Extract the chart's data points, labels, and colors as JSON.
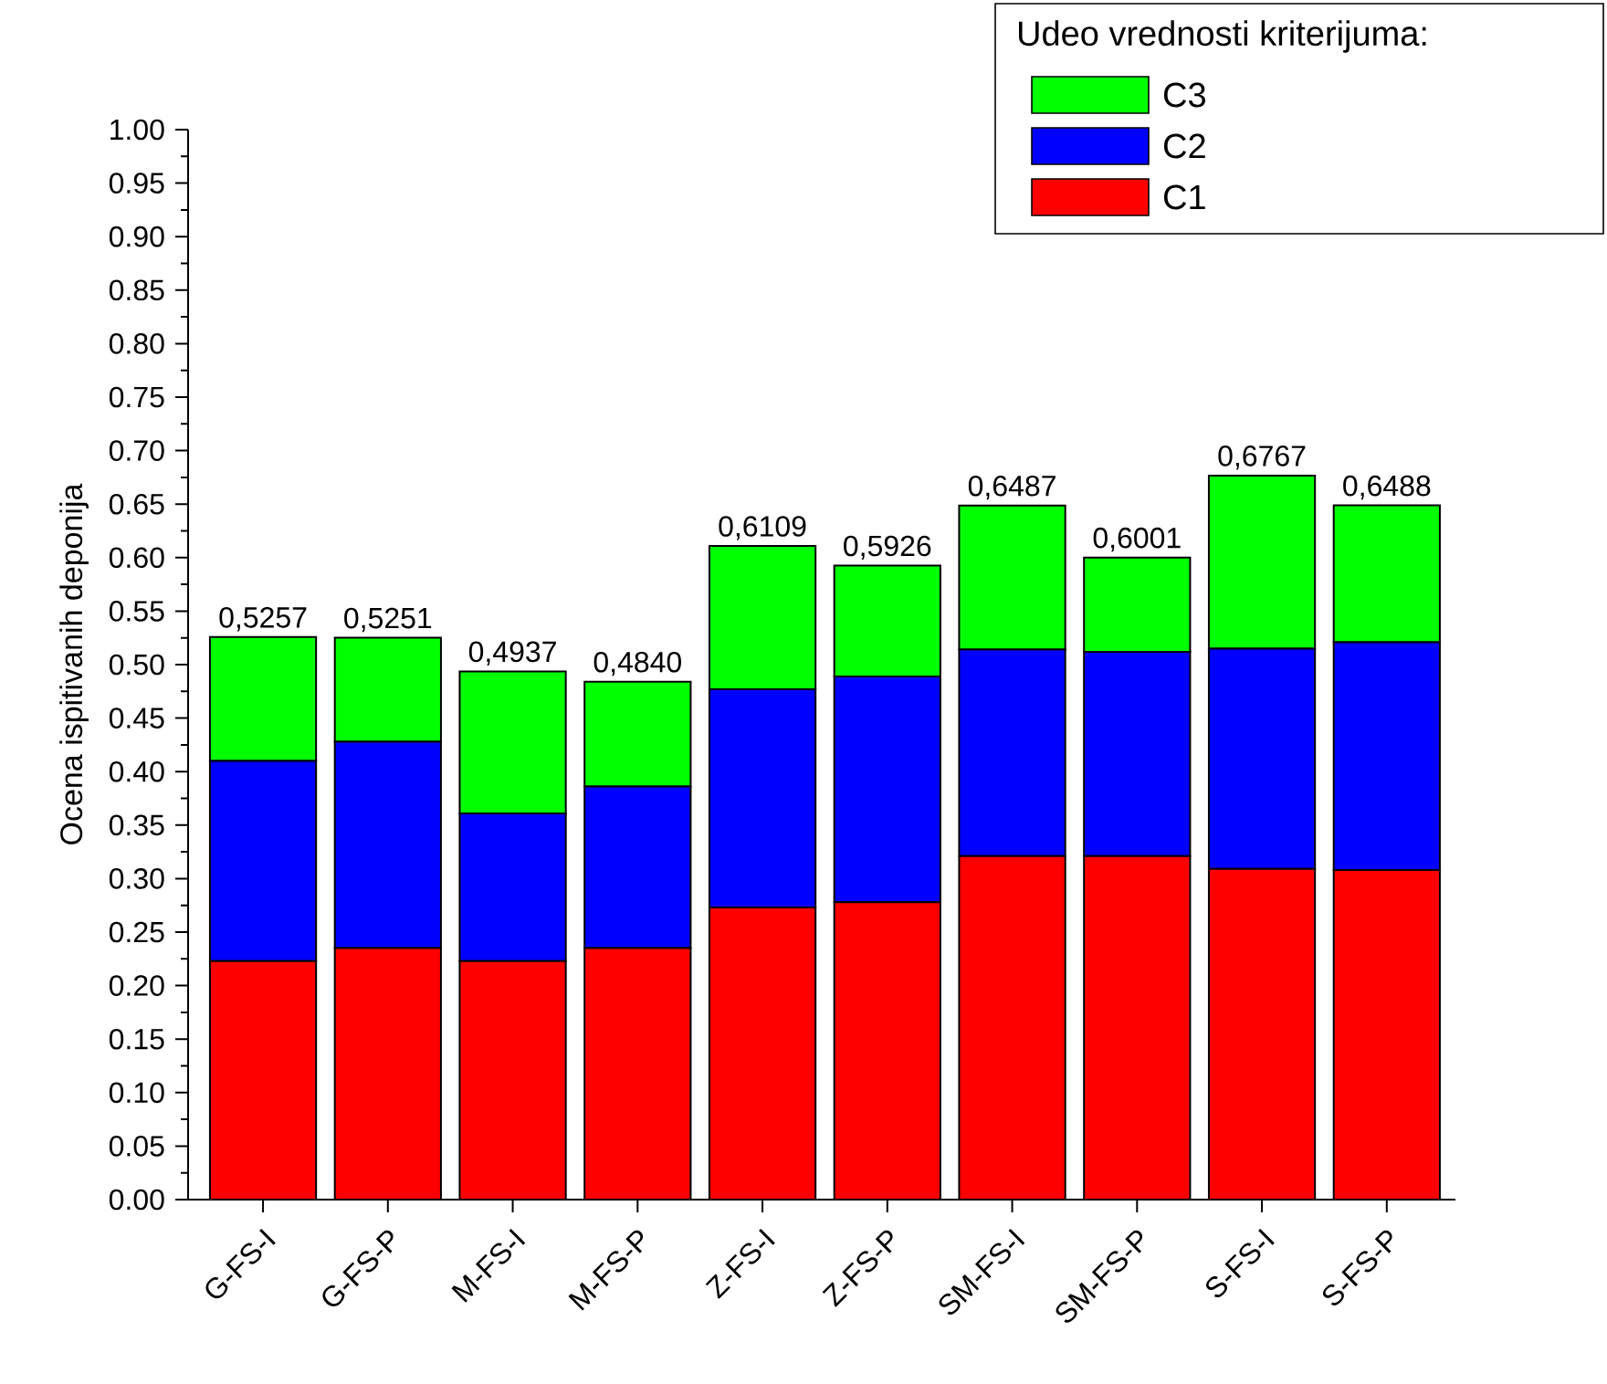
{
  "chart_data": {
    "type": "bar",
    "stacked": true,
    "ylabel": "Ocena ispitivanih deponija",
    "legend_title": "Udeo vrednosti kriterijuma:",
    "legend": "top right",
    "categories": [
      "G-FS-I",
      "G-FS-P",
      "M-FS-I",
      "M-FS-P",
      "Z-FS-I",
      "Z-FS-P",
      "SM-FS-I",
      "SM-FS-P",
      "S-FS-I",
      "S-FS-P"
    ],
    "series": [
      {
        "name": "C1",
        "color": "#ff0000",
        "values": [
          0.223,
          0.235,
          0.223,
          0.235,
          0.273,
          0.278,
          0.321,
          0.321,
          0.309,
          0.308
        ]
      },
      {
        "name": "C2",
        "color": "#0000ff",
        "values": [
          0.187,
          0.193,
          0.138,
          0.151,
          0.204,
          0.211,
          0.193,
          0.191,
          0.206,
          0.213
        ]
      },
      {
        "name": "C3",
        "color": "#00ff00",
        "values": [
          0.1157,
          0.0971,
          0.1327,
          0.098,
          0.1339,
          0.1036,
          0.1347,
          0.0881,
          0.1617,
          0.1278
        ]
      }
    ],
    "totals": [
      "0,5257",
      "0,5251",
      "0,4937",
      "0,4840",
      "0,6109",
      "0,5926",
      "0,6487",
      "0,6001",
      "0,6767",
      "0,6488"
    ],
    "ylim": [
      0,
      1.0
    ],
    "yticks": [
      {
        "value": 0,
        "label": "0.00"
      },
      {
        "value": 0.05,
        "label": "0.05"
      },
      {
        "value": 0.1,
        "label": "0.10"
      },
      {
        "value": 0.15,
        "label": "0.15"
      },
      {
        "value": 0.2,
        "label": "0.20"
      },
      {
        "value": 0.25,
        "label": "0.25"
      },
      {
        "value": 0.3,
        "label": "0.30"
      },
      {
        "value": 0.35,
        "label": "0.35"
      },
      {
        "value": 0.4,
        "label": "0.40"
      },
      {
        "value": 0.45,
        "label": "0.45"
      },
      {
        "value": 0.5,
        "label": "0.50"
      },
      {
        "value": 0.55,
        "label": "0.55"
      },
      {
        "value": 0.6,
        "label": "0.60"
      },
      {
        "value": 0.65,
        "label": "0.65"
      },
      {
        "value": 0.7,
        "label": "0.70"
      },
      {
        "value": 0.75,
        "label": "0.75"
      },
      {
        "value": 0.8,
        "label": "0.80"
      },
      {
        "value": 0.85,
        "label": "0.85"
      },
      {
        "value": 0.9,
        "label": "0.90"
      },
      {
        "value": 0.95,
        "label": "0.95"
      },
      {
        "value": 1.0,
        "label": "1.00"
      }
    ],
    "grid": false
  }
}
